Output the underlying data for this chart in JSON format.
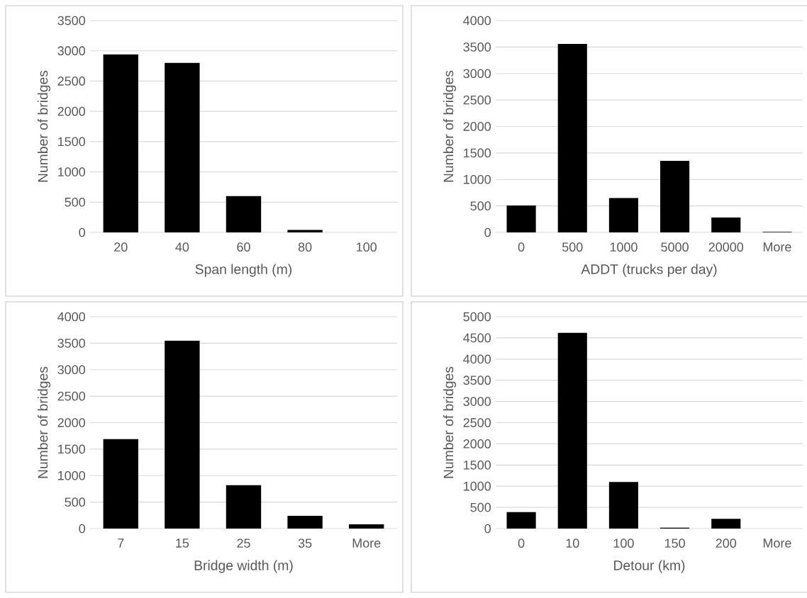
{
  "chart_data": [
    {
      "type": "bar",
      "categories": [
        "20",
        "40",
        "60",
        "80",
        "100"
      ],
      "values": [
        2940,
        2800,
        600,
        40,
        0
      ],
      "color": "#000000",
      "xlabel": "Span length (m)",
      "ylabel": "Number of bridges",
      "ylim": [
        0,
        3500
      ],
      "yticks": [
        0,
        500,
        1000,
        1500,
        2000,
        2500,
        3000,
        3500
      ],
      "grid": "y"
    },
    {
      "type": "bar",
      "categories": [
        "0",
        "500",
        "1000",
        "5000",
        "20000",
        "More"
      ],
      "values": [
        510,
        3560,
        650,
        1350,
        280,
        10
      ],
      "color": "#000000",
      "xlabel": "ADDT (trucks per day)",
      "ylabel": "Number of bridges",
      "ylim": [
        0,
        4000
      ],
      "yticks": [
        0,
        500,
        1000,
        1500,
        2000,
        2500,
        3000,
        3500,
        4000
      ],
      "grid": "y"
    },
    {
      "type": "bar",
      "categories": [
        "7",
        "15",
        "25",
        "35",
        "More"
      ],
      "values": [
        1690,
        3550,
        820,
        240,
        80
      ],
      "color": "#000000",
      "xlabel": "Bridge width (m)",
      "ylabel": "Number of bridges",
      "ylim": [
        0,
        4000
      ],
      "yticks": [
        0,
        500,
        1000,
        1500,
        2000,
        2500,
        3000,
        3500,
        4000
      ],
      "grid": "y"
    },
    {
      "type": "bar",
      "categories": [
        "0",
        "10",
        "100",
        "150",
        "200",
        "More"
      ],
      "values": [
        390,
        4620,
        1100,
        20,
        230,
        0
      ],
      "color": "#000000",
      "xlabel": "Detour (km)",
      "ylabel": "Number of bridges",
      "ylim": [
        0,
        5000
      ],
      "yticks": [
        0,
        500,
        1000,
        1500,
        2000,
        2500,
        3000,
        3500,
        4000,
        4500,
        5000
      ],
      "grid": "y"
    }
  ]
}
